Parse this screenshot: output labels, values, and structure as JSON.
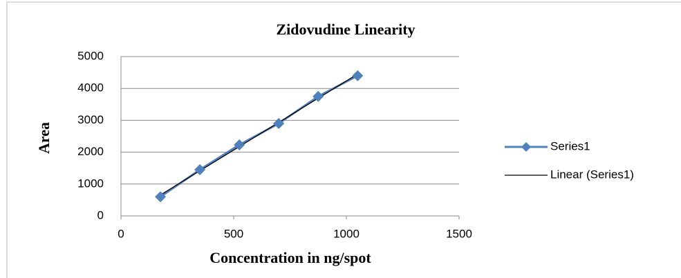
{
  "chart_data": {
    "type": "scatter-line",
    "title": "Zidovudine Linearity",
    "x_label": "Concentration in ng/spot",
    "y_label": "Area",
    "x": [
      175,
      350,
      525,
      700,
      875,
      1050
    ],
    "series": [
      {
        "name": "Series1",
        "color": "#4f81bd",
        "values": [
          600,
          1450,
          2230,
          2900,
          3750,
          4400
        ]
      }
    ],
    "trendline": {
      "name": "Linear (Series1)",
      "color": "#000000"
    },
    "xlim": [
      0,
      1500
    ],
    "xticks": [
      0,
      500,
      1000,
      1500
    ],
    "ylim": [
      0,
      5000
    ],
    "yticks": [
      0,
      1000,
      2000,
      3000,
      4000,
      5000
    ],
    "grid": true,
    "legend": "right"
  }
}
